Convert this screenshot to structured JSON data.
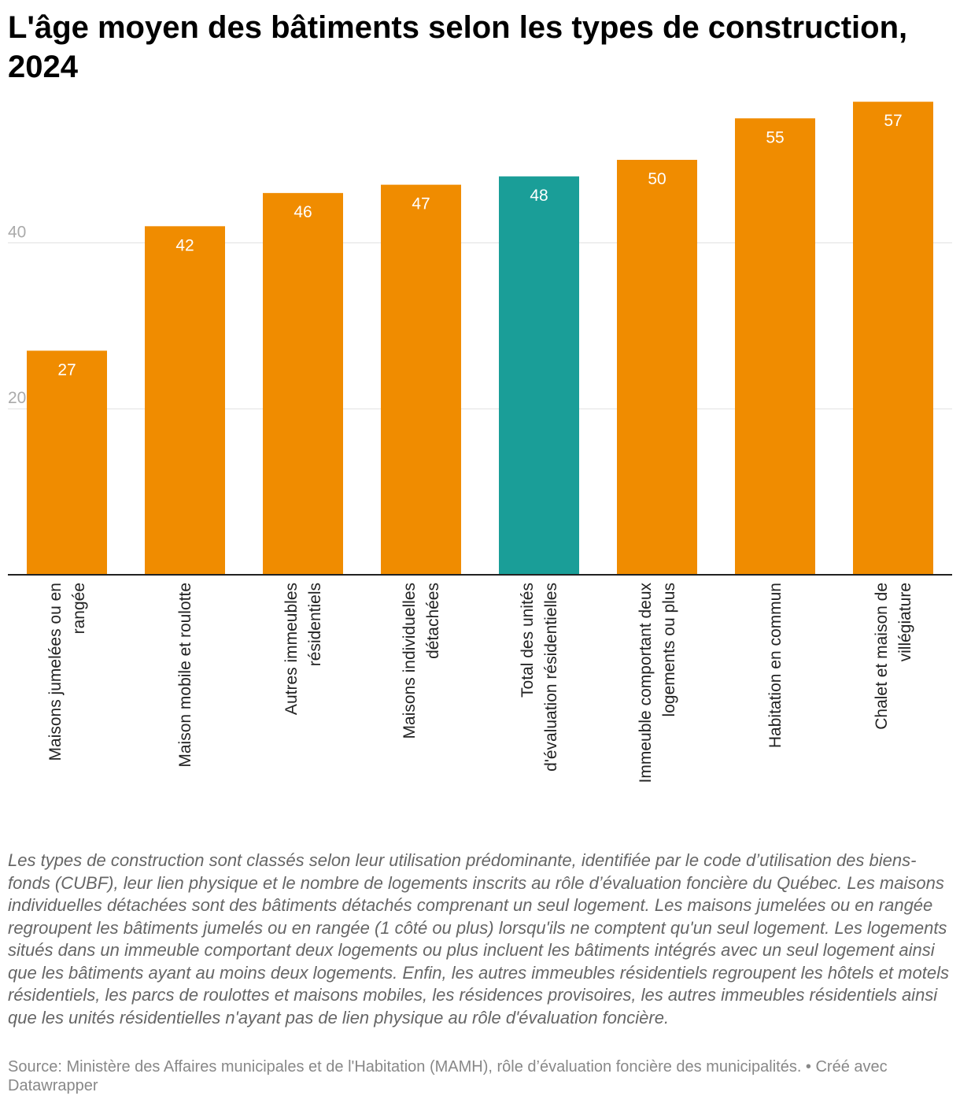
{
  "title": "L'âge moyen des bâtiments selon les types de construction, 2024",
  "note": "Les types de construction sont classés selon leur utilisation prédominante, identifiée par le code d’utilisation des biens-fonds (CUBF), leur lien physique et le nombre de logements inscrits au rôle d’évaluation foncière du Québec. Les maisons individuelles détachées sont des bâtiments détachés comprenant un seul logement. Les maisons jumelées ou en rangée regroupent les bâtiments jumelés ou en rangée (1 côté ou plus) lorsqu'ils ne comptent qu'un seul logement. Les logements situés dans un immeuble comportant deux logements ou plus incluent les bâtiments intégrés avec un seul logement ainsi que les bâtiments ayant au moins deux logements. Enfin, les autres immeubles résidentiels regroupent les hôtels et motels résidentiels, les parcs de roulottes et maisons mobiles, les résidences provisoires, les autres immeubles résidentiels ainsi que les unités résidentielles n'ayant pas de lien physique au rôle d'évaluation foncière.",
  "source": "Source: Ministère des Affaires municipales et de l'Habitation (MAMH), rôle d’évaluation foncière des municipalités. • Créé avec Datawrapper",
  "colors": {
    "bar": "#f08c00",
    "highlight": "#1a9e98",
    "grid": "#e0e0e0",
    "axis": "#222222",
    "tick_label": "#aaaaaa",
    "category_label": "#222222",
    "value_label": "#ffffff"
  },
  "chart_data": {
    "type": "bar",
    "title": "L'âge moyen des bâtiments selon les types de construction, 2024",
    "categories": [
      [
        "Maisons jumelées ou en",
        "rangée"
      ],
      [
        "Maison mobile et roulotte"
      ],
      [
        "Autres immeubles",
        "résidentiels"
      ],
      [
        "Maisons individuelles",
        "détachées"
      ],
      [
        "Total des unités",
        "d'évaluation résidentielles"
      ],
      [
        "Immeuble comportant deux",
        "logements ou plus"
      ],
      [
        "Habitation en commun"
      ],
      [
        "Chalet et maison de",
        "villégiature"
      ]
    ],
    "values": [
      27,
      42,
      46,
      47,
      48,
      50,
      55,
      57
    ],
    "labels": [
      "27",
      "42",
      "46",
      "47",
      "48",
      "50",
      "55",
      "57"
    ],
    "highlight_index": 4,
    "yticks": [
      20,
      40
    ],
    "ylim": [
      0,
      57
    ],
    "grid": true,
    "legend": "none",
    "xlabel": "",
    "ylabel": ""
  }
}
